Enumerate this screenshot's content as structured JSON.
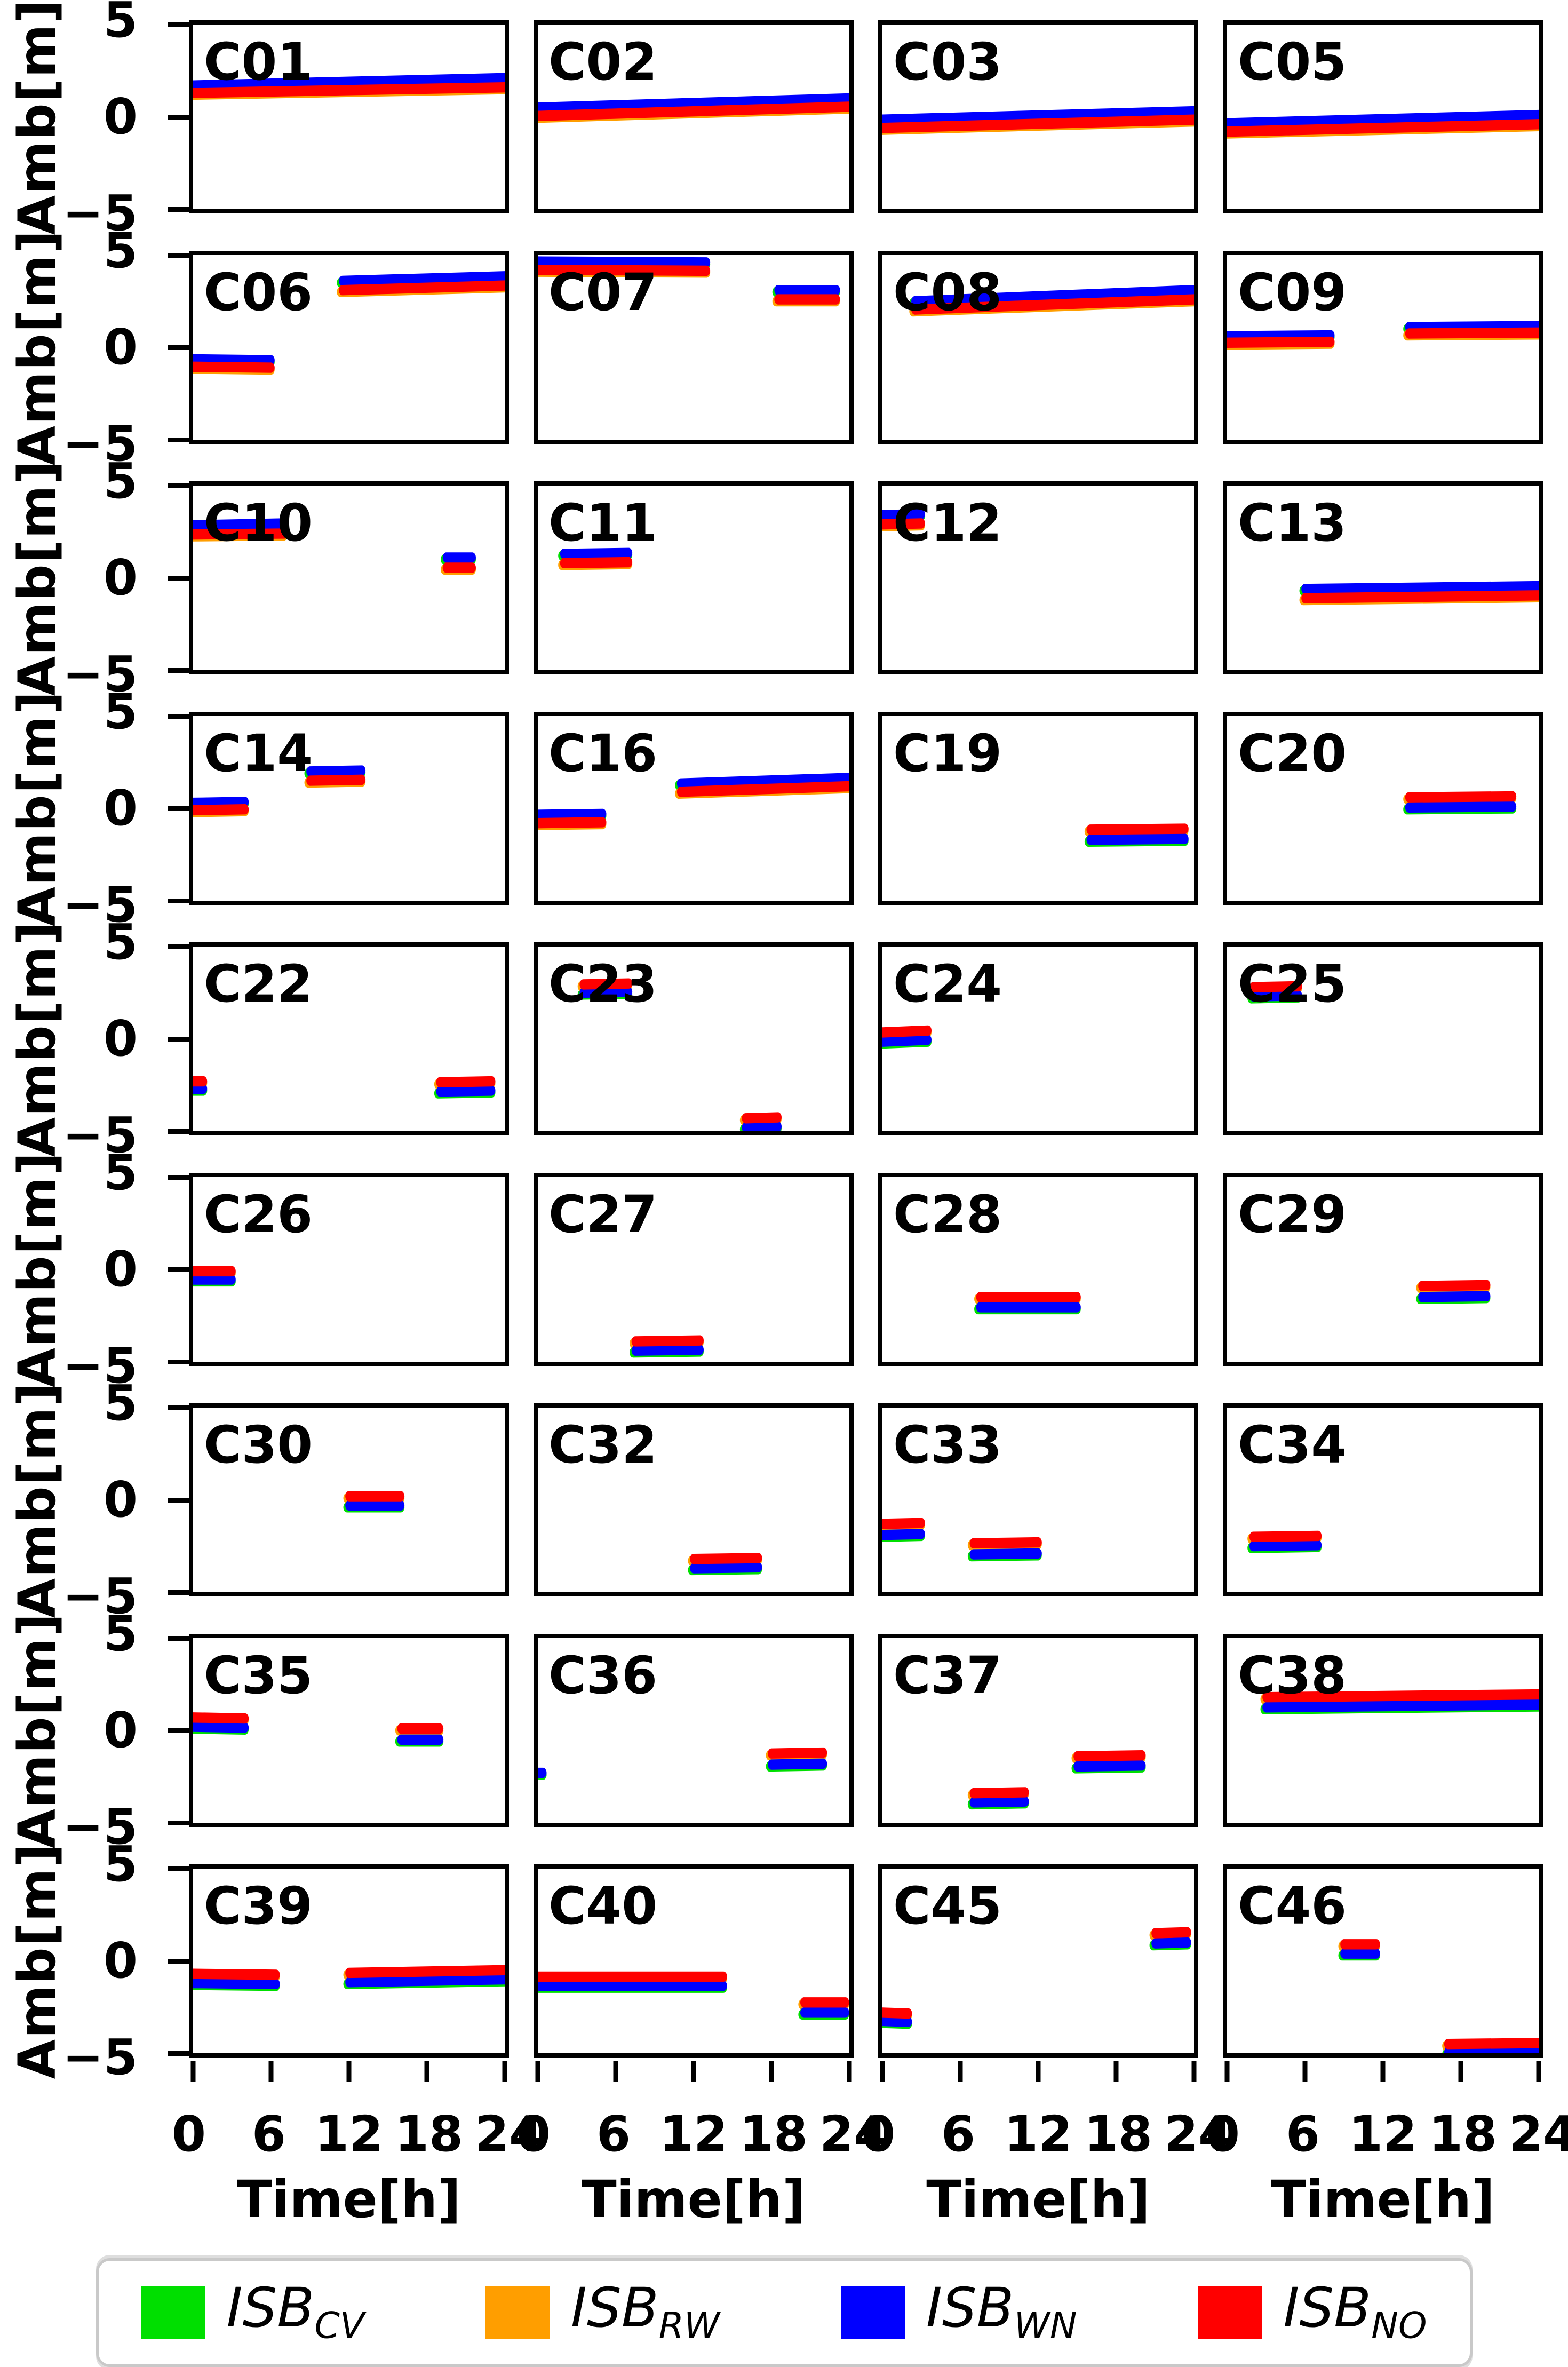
{
  "figure": {
    "y_label": "Amb[m]",
    "x_label": "Time[h]",
    "y_tick_labels": [
      "5",
      "0",
      "−5"
    ],
    "x_tick_labels": [
      "0",
      "6",
      "12",
      "18",
      "24"
    ]
  },
  "legend": {
    "items": [
      {
        "name": "ISB_CV",
        "label": "ISB",
        "sub": "CV",
        "color": "#00DF00"
      },
      {
        "name": "ISB_RW",
        "label": "ISB",
        "sub": "RW",
        "color": "#FF9E00"
      },
      {
        "name": "ISB_WN",
        "label": "ISB",
        "sub": "WN",
        "color": "#0000FF"
      },
      {
        "name": "ISB_NO",
        "label": "ISB",
        "sub": "NO",
        "color": "#FF0000"
      }
    ]
  },
  "chart_data": {
    "type": "line",
    "layout": {
      "rows": 9,
      "cols": 4
    },
    "xlabel": "Time[h]",
    "ylabel": "Amb[m]",
    "xlim": [
      0,
      24
    ],
    "ylim": [
      -5,
      5
    ],
    "x_ticks": [
      0,
      6,
      12,
      18,
      24
    ],
    "y_ticks": [
      5,
      0,
      -5
    ],
    "grid": false,
    "legend_position": "bottom",
    "series_colors": {
      "ISB_CV": "#00DF00",
      "ISB_RW": "#FF9E00",
      "ISB_WN": "#0000FF",
      "ISB_NO": "#FF0000"
    },
    "note": "ISB_CV (green) and ISB_RW (orange) lie almost exactly beneath ISB_WN (blue) and ISB_NO (red); only tiny slivers are visible at segment edges. Units: x in hours, y in meters.",
    "panels": [
      {
        "id": "C01",
        "segments": [
          {
            "x": [
              0,
              24
            ],
            "ISB_WN": [
              1.7,
              2.1
            ],
            "ISB_NO": [
              1.3,
              1.6
            ]
          }
        ]
      },
      {
        "id": "C02",
        "segments": [
          {
            "x": [
              0,
              24
            ],
            "ISB_WN": [
              0.5,
              1.0
            ],
            "ISB_NO": [
              0.05,
              0.55
            ]
          }
        ]
      },
      {
        "id": "C03",
        "segments": [
          {
            "x": [
              0,
              24
            ],
            "ISB_WN": [
              -0.15,
              0.3
            ],
            "ISB_NO": [
              -0.6,
              -0.15
            ]
          }
        ]
      },
      {
        "id": "C05",
        "segments": [
          {
            "x": [
              0,
              24
            ],
            "ISB_WN": [
              -0.35,
              0.1
            ],
            "ISB_NO": [
              -0.8,
              -0.4
            ]
          }
        ]
      },
      {
        "id": "C06",
        "segments": [
          {
            "x": [
              0,
              6
            ],
            "ISB_WN": [
              -0.65,
              -0.7
            ],
            "ISB_NO": [
              -1.05,
              -1.1
            ]
          },
          {
            "x": [
              11.5,
              24
            ],
            "ISB_WN": [
              3.6,
              3.85
            ],
            "ISB_NO": [
              3.1,
              3.35
            ]
          }
        ]
      },
      {
        "id": "C07",
        "segments": [
          {
            "x": [
              0,
              13
            ],
            "ISB_WN": [
              4.65,
              4.6
            ],
            "ISB_NO": [
              4.2,
              4.15
            ]
          },
          {
            "x": [
              18.5,
              23
            ],
            "ISB_WN": [
              3.1,
              3.1
            ],
            "ISB_NO": [
              2.6,
              2.6
            ]
          }
        ]
      },
      {
        "id": "C08",
        "segments": [
          {
            "x": [
              2.5,
              24
            ],
            "ISB_WN": [
              2.5,
              3.1
            ],
            "ISB_NO": [
              2.05,
              2.6
            ]
          }
        ]
      },
      {
        "id": "C09",
        "segments": [
          {
            "x": [
              0,
              8
            ],
            "ISB_WN": [
              0.6,
              0.65
            ],
            "ISB_NO": [
              0.25,
              0.3
            ]
          },
          {
            "x": [
              14,
              24
            ],
            "ISB_WN": [
              1.1,
              1.15
            ],
            "ISB_NO": [
              0.75,
              0.8
            ]
          }
        ]
      },
      {
        "id": "C10",
        "segments": [
          {
            "x": [
              0,
              7
            ],
            "ISB_WN": [
              2.85,
              2.95
            ],
            "ISB_NO": [
              2.35,
              2.4
            ]
          },
          {
            "x": [
              19.5,
              21.5
            ],
            "ISB_WN": [
              1.1,
              1.1
            ],
            "ISB_NO": [
              0.55,
              0.55
            ]
          }
        ]
      },
      {
        "id": "C11",
        "segments": [
          {
            "x": [
              2,
              7
            ],
            "ISB_WN": [
              1.3,
              1.35
            ],
            "ISB_NO": [
              0.8,
              0.85
            ]
          }
        ]
      },
      {
        "id": "C12",
        "segments": [
          {
            "x": [
              0,
              3
            ],
            "ISB_WN": [
              3.4,
              3.45
            ],
            "ISB_NO": [
              2.9,
              2.95
            ]
          }
        ]
      },
      {
        "id": "C13",
        "segments": [
          {
            "x": [
              6,
              24
            ],
            "ISB_WN": [
              -0.6,
              -0.45
            ],
            "ISB_NO": [
              -1.1,
              -0.95
            ]
          }
        ]
      },
      {
        "id": "C14",
        "segments": [
          {
            "x": [
              0,
              4
            ],
            "ISB_WN": [
              0.3,
              0.35
            ],
            "ISB_NO": [
              -0.1,
              -0.05
            ]
          },
          {
            "x": [
              9,
              13
            ],
            "ISB_WN": [
              2.0,
              2.05
            ],
            "ISB_NO": [
              1.5,
              1.55
            ]
          }
        ]
      },
      {
        "id": "C16",
        "segments": [
          {
            "x": [
              0,
              5
            ],
            "ISB_WN": [
              -0.35,
              -0.3
            ],
            "ISB_NO": [
              -0.8,
              -0.75
            ]
          },
          {
            "x": [
              11,
              24
            ],
            "ISB_WN": [
              1.35,
              1.65
            ],
            "ISB_NO": [
              0.9,
              1.2
            ]
          }
        ]
      },
      {
        "id": "C19",
        "segments": [
          {
            "x": [
              16,
              23.3
            ],
            "ISB_WN": [
              -1.7,
              -1.65
            ],
            "ISB_NO": [
              -1.15,
              -1.1
            ]
          }
        ]
      },
      {
        "id": "C20",
        "segments": [
          {
            "x": [
              14,
              22
            ],
            "ISB_WN": [
              0.05,
              0.1
            ],
            "ISB_NO": [
              0.6,
              0.65
            ]
          }
        ]
      },
      {
        "id": "C22",
        "segments": [
          {
            "x": [
              0,
              0.8
            ],
            "ISB_WN": [
              -2.7,
              -2.7
            ],
            "ISB_NO": [
              -2.3,
              -2.3
            ]
          },
          {
            "x": [
              19,
              23
            ],
            "ISB_WN": [
              -2.85,
              -2.8
            ],
            "ISB_NO": [
              -2.35,
              -2.3
            ]
          }
        ]
      },
      {
        "id": "C23",
        "segments": [
          {
            "x": [
              3.5,
              7
            ],
            "ISB_WN": [
              2.5,
              2.55
            ],
            "ISB_NO": [
              2.95,
              3.0
            ]
          },
          {
            "x": [
              16,
              18.5
            ],
            "ISB_WN": [
              -4.8,
              -4.75
            ],
            "ISB_NO": [
              -4.3,
              -4.25
            ]
          }
        ]
      },
      {
        "id": "C24",
        "segments": [
          {
            "x": [
              0,
              3.5
            ],
            "ISB_WN": [
              -0.15,
              -0.05
            ],
            "ISB_NO": [
              0.35,
              0.45
            ]
          }
        ]
      },
      {
        "id": "C25",
        "segments": [
          {
            "x": [
              2,
              5.5
            ],
            "ISB_WN": [
              2.3,
              2.35
            ],
            "ISB_NO": [
              2.8,
              2.85
            ]
          }
        ]
      },
      {
        "id": "C26",
        "segments": [
          {
            "x": [
              0,
              3
            ],
            "ISB_WN": [
              -0.55,
              -0.55
            ],
            "ISB_NO": [
              -0.1,
              -0.1
            ]
          }
        ]
      },
      {
        "id": "C27",
        "segments": [
          {
            "x": [
              7.5,
              12.5
            ],
            "ISB_WN": [
              -4.4,
              -4.35
            ],
            "ISB_NO": [
              -3.9,
              -3.85
            ]
          }
        ]
      },
      {
        "id": "C28",
        "segments": [
          {
            "x": [
              7.5,
              15
            ],
            "ISB_WN": [
              -2.05,
              -2.05
            ],
            "ISB_NO": [
              -1.5,
              -1.5
            ]
          }
        ]
      },
      {
        "id": "C29",
        "segments": [
          {
            "x": [
              15,
              20
            ],
            "ISB_WN": [
              -1.5,
              -1.45
            ],
            "ISB_NO": [
              -0.9,
              -0.85
            ]
          }
        ]
      },
      {
        "id": "C30",
        "segments": [
          {
            "x": [
              12,
              16
            ],
            "ISB_WN": [
              -0.3,
              -0.3
            ],
            "ISB_NO": [
              0.2,
              0.2
            ]
          }
        ]
      },
      {
        "id": "C32",
        "segments": [
          {
            "x": [
              12,
              17
            ],
            "ISB_WN": [
              -3.7,
              -3.65
            ],
            "ISB_NO": [
              -3.2,
              -3.15
            ]
          }
        ]
      },
      {
        "id": "C33",
        "segments": [
          {
            "x": [
              0,
              3
            ],
            "ISB_WN": [
              -1.9,
              -1.85
            ],
            "ISB_NO": [
              -1.3,
              -1.25
            ]
          },
          {
            "x": [
              7,
              12
            ],
            "ISB_WN": [
              -2.95,
              -2.9
            ],
            "ISB_NO": [
              -2.35,
              -2.3
            ]
          }
        ]
      },
      {
        "id": "C34",
        "segments": [
          {
            "x": [
              2,
              7
            ],
            "ISB_WN": [
              -2.5,
              -2.45
            ],
            "ISB_NO": [
              -2.0,
              -1.95
            ]
          }
        ]
      },
      {
        "id": "C35",
        "segments": [
          {
            "x": [
              0,
              4
            ],
            "ISB_WN": [
              0.2,
              0.15
            ],
            "ISB_NO": [
              0.7,
              0.65
            ]
          },
          {
            "x": [
              16,
              19
            ],
            "ISB_WN": [
              -0.5,
              -0.5
            ],
            "ISB_NO": [
              0.1,
              0.1
            ]
          }
        ]
      },
      {
        "id": "C36",
        "segments": [
          {
            "x": [
              0,
              0.4
            ],
            "ISB_WN": [
              -2.3,
              -2.3
            ]
          },
          {
            "x": [
              18,
              22
            ],
            "ISB_WN": [
              -1.85,
              -1.8
            ],
            "ISB_NO": [
              -1.25,
              -1.2
            ]
          }
        ]
      },
      {
        "id": "C37",
        "segments": [
          {
            "x": [
              7,
              11
            ],
            "ISB_WN": [
              -3.9,
              -3.85
            ],
            "ISB_NO": [
              -3.4,
              -3.35
            ]
          },
          {
            "x": [
              15,
              20
            ],
            "ISB_WN": [
              -1.95,
              -1.9
            ],
            "ISB_NO": [
              -1.4,
              -1.35
            ]
          }
        ]
      },
      {
        "id": "C38",
        "segments": [
          {
            "x": [
              3,
              24
            ],
            "ISB_WN": [
              1.25,
              1.4
            ],
            "ISB_NO": [
              1.8,
              1.95
            ]
          }
        ]
      },
      {
        "id": "C39",
        "segments": [
          {
            "x": [
              0,
              6.4
            ],
            "ISB_WN": [
              -1.2,
              -1.25
            ],
            "ISB_NO": [
              -0.7,
              -0.75
            ]
          },
          {
            "x": [
              12,
              24
            ],
            "ISB_WN": [
              -1.15,
              -1.0
            ],
            "ISB_NO": [
              -0.65,
              -0.5
            ]
          }
        ]
      },
      {
        "id": "C40",
        "segments": [
          {
            "x": [
              0,
              14.3
            ],
            "ISB_WN": [
              -1.35,
              -1.35
            ],
            "ISB_NO": [
              -0.85,
              -0.85
            ]
          },
          {
            "x": [
              20.5,
              23.7
            ],
            "ISB_WN": [
              -2.8,
              -2.8
            ],
            "ISB_NO": [
              -2.25,
              -2.25
            ]
          }
        ]
      },
      {
        "id": "C45",
        "segments": [
          {
            "x": [
              0,
              2
            ],
            "ISB_WN": [
              -3.25,
              -3.3
            ],
            "ISB_NO": [
              -2.8,
              -2.85
            ]
          },
          {
            "x": [
              21,
              23.5
            ],
            "ISB_WN": [
              0.95,
              1.0
            ],
            "ISB_NO": [
              1.5,
              1.55
            ]
          }
        ]
      },
      {
        "id": "C46",
        "segments": [
          {
            "x": [
              9,
              11.5
            ],
            "ISB_WN": [
              0.4,
              0.4
            ],
            "ISB_NO": [
              0.9,
              0.9
            ]
          },
          {
            "x": [
              17,
              24
            ],
            "ISB_WN": [
              -4.95,
              -4.9
            ],
            "ISB_NO": [
              -4.5,
              -4.45
            ]
          }
        ]
      }
    ]
  }
}
